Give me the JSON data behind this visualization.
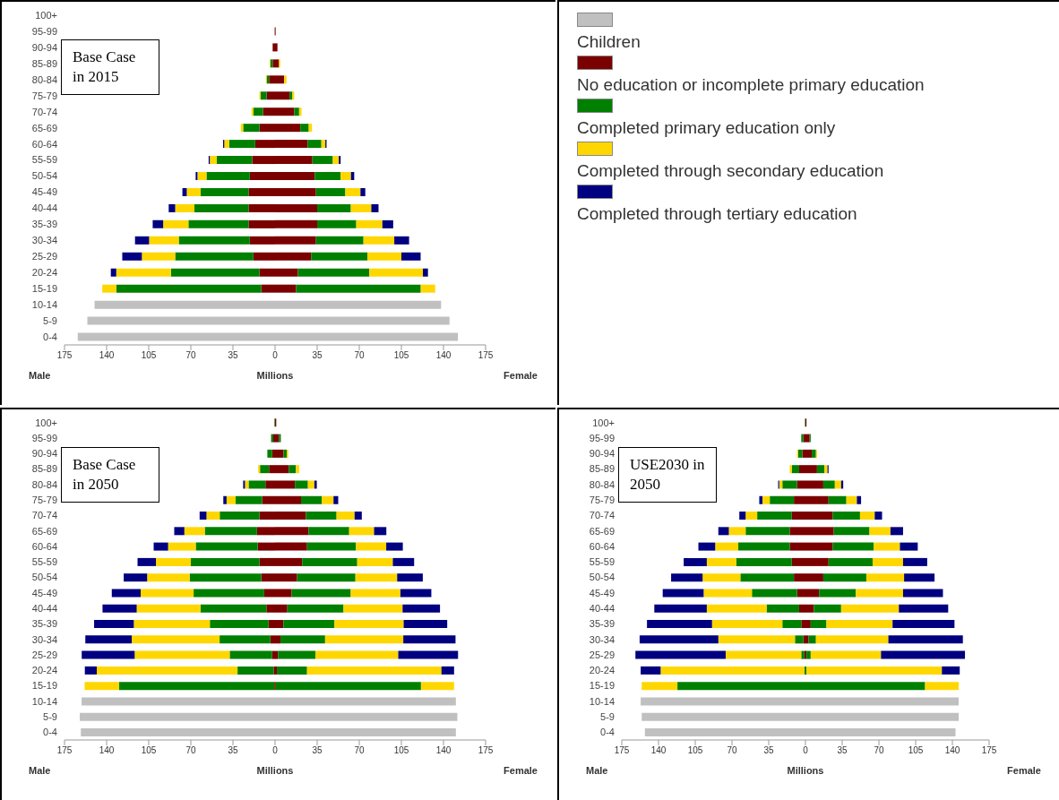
{
  "chart_data": [
    {
      "type": "bar",
      "orientation": "horizontal",
      "stacked": true,
      "title": "Base Case in 2015",
      "xlabel": "Millions",
      "annotations": [
        "Male",
        "Female"
      ],
      "legend": "right",
      "categories": [
        "100+",
        "95-99",
        "90-94",
        "85-89",
        "80-84",
        "75-79",
        "70-74",
        "65-69",
        "60-64",
        "55-59",
        "50-54",
        "45-49",
        "40-44",
        "35-39",
        "30-34",
        "25-29",
        "20-24",
        "15-19",
        "10-14",
        "5-9",
        "0-4"
      ],
      "xlim": [
        -175,
        175
      ],
      "xticks": [
        {
          "value": -175,
          "label": "175"
        },
        {
          "value": -140,
          "label": "140"
        },
        {
          "value": -105,
          "label": "105"
        },
        {
          "value": -70,
          "label": "70"
        },
        {
          "value": -35,
          "label": "35"
        },
        0,
        35,
        70,
        105,
        140,
        175
      ],
      "series": [
        {
          "name": "Children",
          "color": "#c0c0c0",
          "values": [
            null,
            null,
            null,
            null,
            null,
            null,
            null,
            null,
            null,
            null,
            null,
            null,
            null,
            null,
            null,
            null,
            null,
            null,
            138,
            145,
            152
          ]
        },
        {
          "color": "#c0c0c0",
          "values": [
            null,
            null,
            null,
            null,
            null,
            null,
            null,
            null,
            null,
            null,
            null,
            null,
            null,
            null,
            null,
            null,
            null,
            null,
            -150,
            -156,
            -164
          ]
        },
        {
          "name": "No education or incomplete primary education",
          "color": "#7b0000",
          "values": [
            0,
            0.5,
            2,
            3.3,
            7.5,
            12,
            16,
            21,
            27,
            31,
            33,
            34,
            35,
            35,
            34,
            30,
            19,
            17.5,
            null,
            null,
            null
          ]
        },
        {
          "color": "#7b0000",
          "values": [
            0,
            -0.3,
            -2,
            -2,
            -5,
            -7,
            -10,
            -13,
            -16.5,
            -19,
            -21,
            -22,
            -22,
            -22,
            -21,
            -18,
            -13,
            -11.4,
            null,
            null,
            null
          ]
        },
        {
          "name": "Completed primary education only",
          "color": "#008000",
          "values": [
            0,
            0,
            0,
            0,
            0,
            2.4,
            4,
            7,
            11.5,
            17,
            21.4,
            24.4,
            28,
            32.5,
            39.5,
            46.7,
            59.3,
            103.6,
            null,
            null,
            null
          ]
        },
        {
          "color": "#008000",
          "values": [
            0,
            0,
            0,
            -2,
            -2,
            -5,
            -8,
            -13.5,
            -21.7,
            -29.5,
            -36,
            -40,
            -45,
            -50,
            -59,
            -65,
            -73.5,
            -120.5,
            null,
            null,
            null
          ]
        },
        {
          "name": "Completed through secondary education",
          "color": "#ffd700",
          "values": [
            0,
            0,
            0,
            1,
            2,
            1.5,
            2,
            2.7,
            3.3,
            5,
            8.7,
            12.6,
            17,
            21.7,
            25.6,
            28.3,
            44.6,
            12,
            null,
            null,
            null
          ]
        },
        {
          "color": "#ffd700",
          "values": [
            0,
            0,
            0,
            -0.5,
            -0.6,
            -1,
            -1.5,
            -2,
            -4,
            -5.7,
            -7.5,
            -11.4,
            -16,
            -21,
            -24.7,
            -27.7,
            -45.5,
            -11.7,
            null,
            null,
            null
          ]
        },
        {
          "name": "Completed through tertiary education",
          "color": "#000080",
          "values": [
            0,
            0,
            0,
            0,
            0,
            0,
            0,
            0,
            1,
            1.5,
            2.7,
            4,
            6,
            9,
            12.3,
            16,
            4.2,
            0,
            null,
            null,
            null
          ]
        },
        {
          "color": "#000080",
          "values": [
            0,
            0,
            0,
            0,
            0,
            0,
            0,
            0,
            -1,
            -1,
            -1.5,
            -3.6,
            -5.4,
            -8.7,
            -11.7,
            -16.3,
            -4.5,
            0,
            null,
            null,
            null
          ]
        }
      ]
    },
    {
      "type": "bar",
      "orientation": "horizontal",
      "stacked": true,
      "title": "Base Case in 2050",
      "xlabel": "Millions",
      "annotations": [
        "Male",
        "Female"
      ],
      "categories": [
        "100+",
        "95-99",
        "90-94",
        "85-89",
        "80-84",
        "75-79",
        "70-74",
        "65-69",
        "60-64",
        "55-59",
        "50-54",
        "45-49",
        "40-44",
        "35-39",
        "30-34",
        "25-29",
        "20-24",
        "15-19",
        "10-14",
        "5-9",
        "0-4"
      ],
      "xlim": [
        -175,
        175
      ],
      "xticks": [
        {
          "value": -175,
          "label": "175"
        },
        {
          "value": -140,
          "label": "140"
        },
        {
          "value": -105,
          "label": "105"
        },
        {
          "value": -70,
          "label": "70"
        },
        {
          "value": -35,
          "label": "35"
        },
        0,
        35,
        70,
        105,
        140,
        175
      ],
      "series": [
        {
          "color": "#c0c0c0",
          "values": [
            null,
            null,
            null,
            null,
            null,
            null,
            null,
            null,
            null,
            null,
            null,
            null,
            null,
            null,
            null,
            null,
            null,
            null,
            150.3,
            151.5,
            150.3
          ]
        },
        {
          "color": "#c0c0c0",
          "values": [
            null,
            null,
            null,
            null,
            null,
            null,
            null,
            null,
            null,
            null,
            null,
            null,
            null,
            null,
            null,
            null,
            null,
            null,
            -160.8,
            -162.3,
            -161.4
          ]
        },
        {
          "color": "#7b0000",
          "values": [
            1,
            3.3,
            7,
            11.4,
            16.5,
            21.6,
            25.7,
            27.8,
            26.6,
            22.5,
            18.3,
            13.8,
            10.2,
            6.9,
            4.5,
            2.4,
            1.5,
            0.6,
            null,
            null,
            null
          ]
        },
        {
          "color": "#7b0000",
          "values": [
            0,
            -1.5,
            -2.4,
            -5,
            -8,
            -10.8,
            -13,
            -15,
            -14.4,
            -13,
            -11.4,
            -9,
            -7.2,
            -5.4,
            -3.9,
            -2.4,
            -1.2,
            -0.6,
            null,
            null,
            null
          ]
        },
        {
          "color": "#008000",
          "values": [
            0,
            1.5,
            2.7,
            6,
            10.8,
            17.4,
            25.4,
            33.8,
            40.7,
            45.8,
            48.5,
            49.1,
            46.7,
            42.5,
            37.1,
            31.1,
            25.1,
            120.7,
            null,
            null,
            null
          ]
        },
        {
          "color": "#008000",
          "values": [
            -0.5,
            -1.8,
            -4,
            -7.5,
            -14,
            -22,
            -33,
            -43.4,
            -51.5,
            -57,
            -59.6,
            -58.7,
            -54.8,
            -48.8,
            -42.2,
            -35.3,
            -30,
            -129,
            null,
            null,
            null
          ]
        },
        {
          "color": "#ffd700",
          "values": [
            0,
            0,
            1.2,
            2.7,
            5.4,
            9.6,
            15,
            20.7,
            25.1,
            29.6,
            34.7,
            41.3,
            49.1,
            57.5,
            65,
            68.9,
            111.7,
            27.5,
            null,
            null,
            null
          ]
        },
        {
          "color": "#ffd700",
          "values": [
            0,
            0,
            0,
            -1.5,
            -3,
            -7.5,
            -11,
            -17,
            -23,
            -29,
            -35.3,
            -44,
            -53,
            -63.2,
            -73,
            -79,
            -117,
            -28.7,
            null,
            null,
            null
          ]
        },
        {
          "color": "#000080",
          "values": [
            0,
            0,
            0,
            0,
            2,
            3.9,
            6,
            10.2,
            13.8,
            17.7,
            21.3,
            25.7,
            31.1,
            36.2,
            43.4,
            49.7,
            10.5,
            0,
            null,
            null,
            null
          ]
        },
        {
          "color": "#000080",
          "values": [
            0,
            0,
            0,
            0,
            -1.5,
            -2.7,
            -5.7,
            -8.4,
            -12,
            -15.3,
            -19.5,
            -24,
            -28.4,
            -33,
            -38.6,
            -44,
            -9.9,
            0,
            null,
            null,
            null
          ]
        }
      ]
    },
    {
      "type": "bar",
      "orientation": "horizontal",
      "stacked": true,
      "title": "USE2030 in 2050",
      "xlabel": "Millions",
      "annotations": [
        "Male",
        "Female"
      ],
      "categories": [
        "100+",
        "95-99",
        "90-94",
        "85-89",
        "80-84",
        "75-79",
        "70-74",
        "65-69",
        "60-64",
        "55-59",
        "50-54",
        "45-49",
        "40-44",
        "35-39",
        "30-34",
        "25-29",
        "20-24",
        "15-19",
        "10-14",
        "5-9",
        "0-4"
      ],
      "xlim": [
        -175,
        175
      ],
      "xticks": [
        {
          "value": -175,
          "label": "175"
        },
        {
          "value": -140,
          "label": "140"
        },
        {
          "value": -105,
          "label": "105"
        },
        {
          "value": -70,
          "label": "70"
        },
        {
          "value": -35,
          "label": "35"
        },
        0,
        35,
        70,
        105,
        140,
        175
      ],
      "series": [
        {
          "color": "#c0c0c0",
          "values": [
            null,
            null,
            null,
            null,
            null,
            null,
            null,
            null,
            null,
            null,
            null,
            null,
            null,
            null,
            null,
            null,
            null,
            null,
            146,
            146,
            143
          ]
        },
        {
          "color": "#c0c0c0",
          "values": [
            null,
            null,
            null,
            null,
            null,
            null,
            null,
            null,
            null,
            null,
            null,
            null,
            null,
            null,
            null,
            null,
            null,
            null,
            -157,
            -156,
            -153
          ]
        },
        {
          "color": "#7b0000",
          "values": [
            1,
            4,
            6,
            11,
            17,
            22,
            26,
            27,
            26,
            22,
            17,
            13,
            8,
            5,
            3,
            1,
            0,
            0,
            null,
            null,
            null
          ]
        },
        {
          "color": "#7b0000",
          "values": [
            0,
            -2,
            -3,
            -6,
            -8,
            -11,
            -13,
            -15,
            -15,
            -13,
            -11,
            -8,
            -6,
            -4,
            -2,
            -1,
            0,
            0,
            null,
            null,
            null
          ]
        },
        {
          "color": "#008000",
          "values": [
            0,
            1,
            4,
            7,
            11,
            17,
            26,
            34,
            39,
            42,
            41,
            35,
            26,
            15,
            7,
            4,
            1,
            114,
            null,
            null,
            null
          ]
        },
        {
          "color": "#008000",
          "values": [
            -0.5,
            -2,
            -4,
            -7,
            -14,
            -23,
            -33,
            -42,
            -49,
            -53,
            -51,
            -43,
            -31,
            -18,
            -8,
            -3,
            -1,
            -122,
            null,
            null,
            null
          ]
        },
        {
          "color": "#ffd700",
          "values": [
            0,
            0,
            1,
            3,
            6,
            10,
            14,
            20,
            25,
            29,
            36,
            45,
            55,
            63,
            69,
            67,
            129,
            32,
            null,
            null,
            null
          ]
        },
        {
          "color": "#ffd700",
          "values": [
            0,
            0,
            -1,
            -2,
            -3,
            -7,
            -11,
            -16,
            -22,
            -28,
            -36,
            -46,
            -57,
            -67,
            -73,
            -72,
            -137,
            -34,
            null,
            null,
            null
          ]
        },
        {
          "color": "#000080",
          "values": [
            0,
            0,
            0,
            1,
            2,
            4,
            7,
            12,
            17,
            23,
            29,
            38,
            47,
            59,
            71,
            80,
            17,
            0,
            null,
            null,
            null
          ]
        },
        {
          "color": "#000080",
          "values": [
            0,
            0,
            0,
            0,
            -1,
            -3,
            -6,
            -10,
            -16,
            -22,
            -30,
            -39,
            -50,
            -62,
            -75,
            -86,
            -19,
            0,
            null,
            null,
            null
          ]
        }
      ]
    }
  ]
}
